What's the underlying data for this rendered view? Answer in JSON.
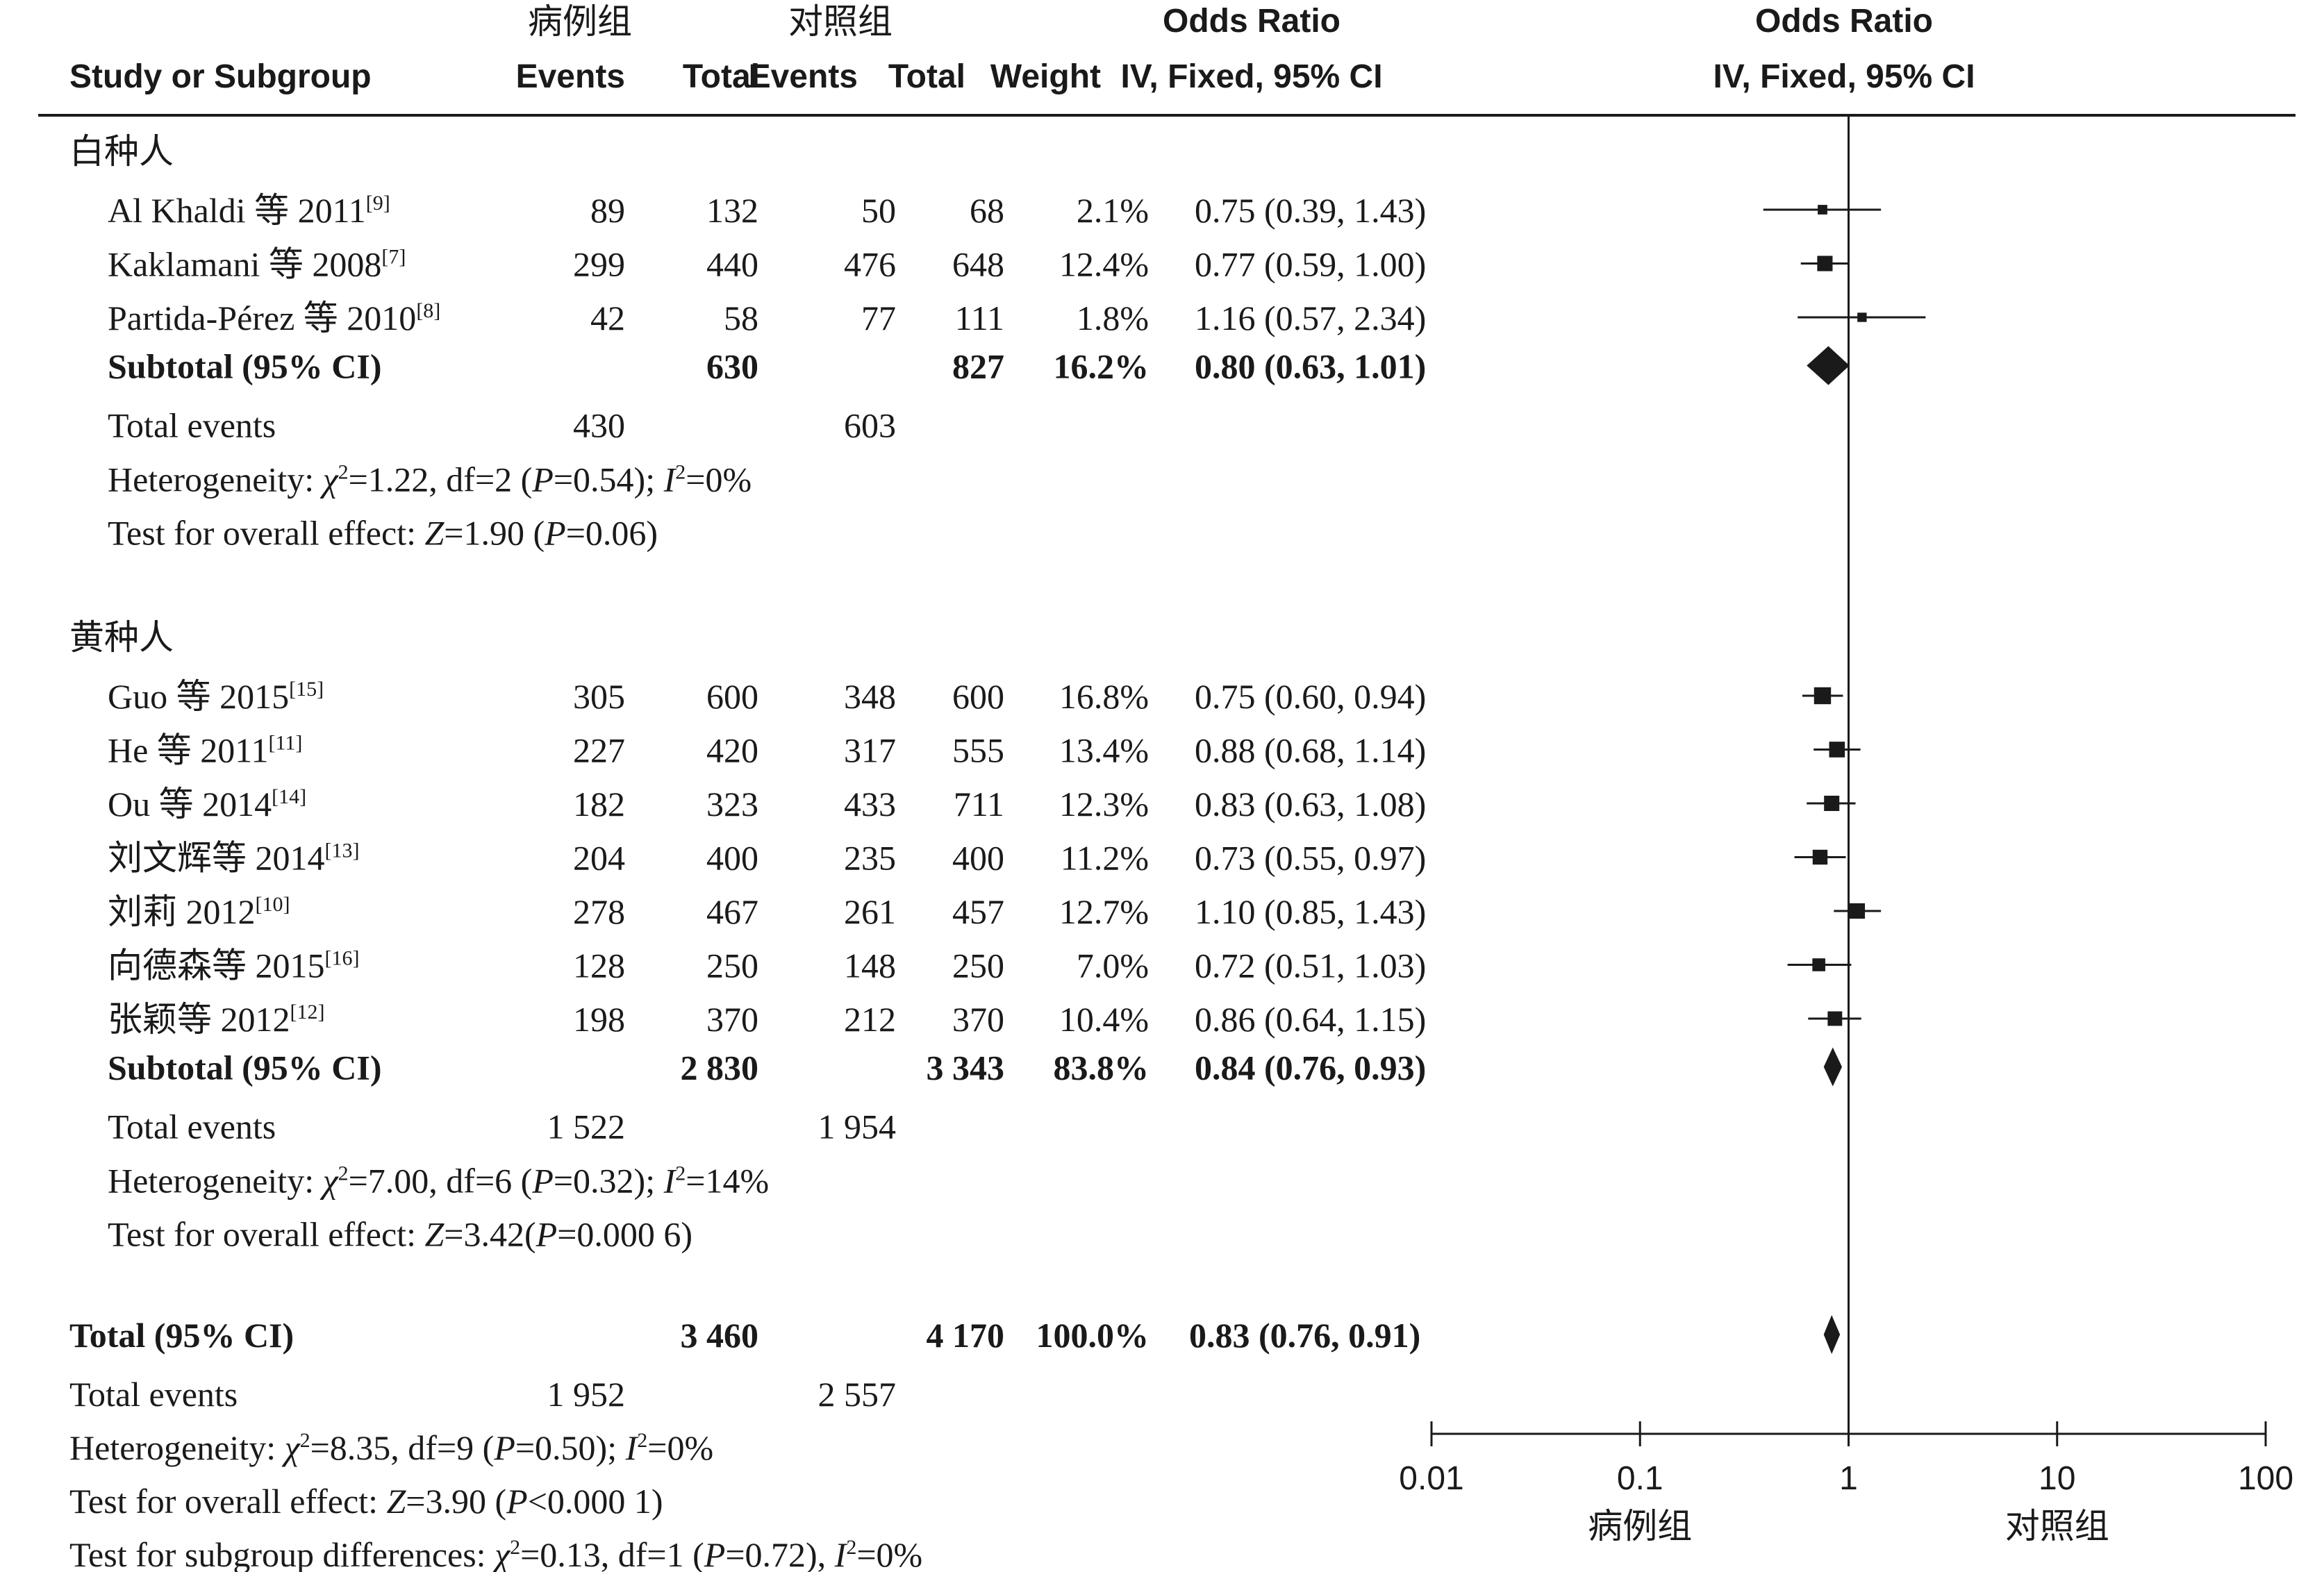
{
  "headers": {
    "case_group": "病例组",
    "control_group": "对照组",
    "or_top_1": "Odds Ratio",
    "or_top_2": "Odds Ratio",
    "study": "Study or Subgroup",
    "events_case": "Events",
    "total_case": "Total",
    "events_ctrl": "Events",
    "total_ctrl": "Total",
    "weight": "Weight",
    "or_method_1": "IV, Fixed, 95% CI",
    "or_method_2": "IV, Fixed, 95% CI"
  },
  "groups": [
    {
      "title": "白种人",
      "studies": [
        {
          "name": "Al Khaldi 等 2011",
          "ref": "[9]",
          "e1": "89",
          "t1": "132",
          "e2": "50",
          "t2": "68",
          "w": "2.1%",
          "ci": "0.75 (0.39, 1.43)",
          "or": 0.75,
          "lo": 0.39,
          "hi": 1.43,
          "wt": 2.1
        },
        {
          "name": "Kaklamani 等 2008",
          "ref": "[7]",
          "e1": "299",
          "t1": "440",
          "e2": "476",
          "t2": "648",
          "w": "12.4%",
          "ci": "0.77 (0.59, 1.00)",
          "or": 0.77,
          "lo": 0.59,
          "hi": 1.0,
          "wt": 12.4
        },
        {
          "name": "Partida-Pérez 等 2010",
          "ref": "[8]",
          "e1": "42",
          "t1": "58",
          "e2": "77",
          "t2": "111",
          "w": "1.8%",
          "ci": "1.16 (0.57, 2.34)",
          "or": 1.16,
          "lo": 0.57,
          "hi": 2.34,
          "wt": 1.8
        }
      ],
      "subtotal": {
        "label": "Subtotal (95% CI)",
        "t1": "630",
        "t2": "827",
        "w": "16.2%",
        "ci": "0.80 (0.63, 1.01)",
        "or": 0.8,
        "lo": 0.63,
        "hi": 1.01
      },
      "total_events": {
        "label": "Total events",
        "e1": "430",
        "e2": "603"
      },
      "heterogeneity": {
        "prefix": "Heterogeneity: ",
        "chi_sym": "χ",
        "chi_sup": "2",
        "chi_val": "=1.22, df=2 (",
        "p_sym": "P",
        "p_val": "=0.54); ",
        "i_sym": "I",
        "i_sup": "2",
        "i_val": "=0%"
      },
      "overall": {
        "prefix": "Test for overall effect: ",
        "z_sym": "Z",
        "z_val": "=1.90 (",
        "p_sym": "P",
        "p_val": "=0.06)"
      }
    },
    {
      "title": "黄种人",
      "studies": [
        {
          "name": "Guo 等 2015",
          "ref": "[15]",
          "e1": "305",
          "t1": "600",
          "e2": "348",
          "t2": "600",
          "w": "16.8%",
          "ci": "0.75 (0.60, 0.94)",
          "or": 0.75,
          "lo": 0.6,
          "hi": 0.94,
          "wt": 16.8
        },
        {
          "name": "He 等 2011",
          "ref": "[11]",
          "e1": "227",
          "t1": "420",
          "e2": "317",
          "t2": "555",
          "w": "13.4%",
          "ci": "0.88 (0.68, 1.14)",
          "or": 0.88,
          "lo": 0.68,
          "hi": 1.14,
          "wt": 13.4
        },
        {
          "name": "Ou 等 2014",
          "ref": "[14]",
          "e1": "182",
          "t1": "323",
          "e2": "433",
          "t2": "711",
          "w": "12.3%",
          "ci": "0.83 (0.63, 1.08)",
          "or": 0.83,
          "lo": 0.63,
          "hi": 1.08,
          "wt": 12.3
        },
        {
          "name": "刘文辉等 2014",
          "ref": "[13]",
          "e1": "204",
          "t1": "400",
          "e2": "235",
          "t2": "400",
          "w": "11.2%",
          "ci": "0.73 (0.55, 0.97)",
          "or": 0.73,
          "lo": 0.55,
          "hi": 0.97,
          "wt": 11.2
        },
        {
          "name": "刘莉 2012",
          "ref": "[10]",
          "e1": "278",
          "t1": "467",
          "e2": "261",
          "t2": "457",
          "w": "12.7%",
          "ci": "1.10 (0.85, 1.43)",
          "or": 1.1,
          "lo": 0.85,
          "hi": 1.43,
          "wt": 12.7
        },
        {
          "name": "向德森等 2015",
          "ref": "[16]",
          "e1": "128",
          "t1": "250",
          "e2": "148",
          "t2": "250",
          "w": "7.0%",
          "ci": "0.72 (0.51, 1.03)",
          "or": 0.72,
          "lo": 0.51,
          "hi": 1.03,
          "wt": 7.0
        },
        {
          "name": "张颖等 2012",
          "ref": "[12]",
          "e1": "198",
          "t1": "370",
          "e2": "212",
          "t2": "370",
          "w": "10.4%",
          "ci": "0.86 (0.64, 1.15)",
          "or": 0.86,
          "lo": 0.64,
          "hi": 1.15,
          "wt": 10.4
        }
      ],
      "subtotal": {
        "label": "Subtotal (95% CI)",
        "t1": "2 830",
        "t2": "3 343",
        "w": "83.8%",
        "ci": "0.84 (0.76, 0.93)",
        "or": 0.84,
        "lo": 0.76,
        "hi": 0.93
      },
      "total_events": {
        "label": "Total events",
        "e1": "1 522",
        "e2": "1 954"
      },
      "heterogeneity": {
        "prefix": "Heterogeneity: ",
        "chi_sym": "χ",
        "chi_sup": "2",
        "chi_val": "=7.00, df=6 (",
        "p_sym": "P",
        "p_val": "=0.32); ",
        "i_sym": "I",
        "i_sup": "2",
        "i_val": "=14%"
      },
      "overall": {
        "prefix": "Test for overall effect: ",
        "z_sym": "Z",
        "z_val": "=3.42(",
        "p_sym": "P",
        "p_val": "=0.000 6)"
      }
    }
  ],
  "total": {
    "label": "Total (95% CI)",
    "t1": "3 460",
    "t2": "4 170",
    "w": "100.0%",
    "ci": "0.83 (0.76, 0.91)",
    "or": 0.83,
    "lo": 0.76,
    "hi": 0.91,
    "total_events": {
      "label": "Total events",
      "e1": "1 952",
      "e2": "2 557"
    },
    "heterogeneity": {
      "prefix": "Heterogeneity: ",
      "chi_sym": "χ",
      "chi_sup": "2",
      "chi_val": "=8.35, df=9 (",
      "p_sym": "P",
      "p_val": "=0.50); ",
      "i_sym": "I",
      "i_sup": "2",
      "i_val": "=0%"
    },
    "overall": {
      "prefix": "Test for overall effect: ",
      "z_sym": "Z",
      "z_val": "=3.90 (",
      "p_sym": "P",
      "p_val": "<0.000 1)"
    },
    "subgroup": {
      "prefix": "Test for subgroup differences: ",
      "chi_sym": "χ",
      "chi_sup": "2",
      "chi_val": "=0.13, df=1 (",
      "p_sym": "P",
      "p_val": "=0.72), ",
      "i_sym": "I",
      "i_sup": "2",
      "i_val": "=0%"
    }
  },
  "chart_data": {
    "type": "scatter",
    "x_scale": "log",
    "xlim": [
      0.01,
      100
    ],
    "x_ticks": [
      0.01,
      0.1,
      1,
      10,
      100
    ],
    "x_tick_labels": [
      "0.01",
      "0.1",
      "1",
      "10",
      "100"
    ],
    "favours_left": "病例组",
    "favours_right": "对照组",
    "null_line": 1,
    "colors": {
      "ink": "#1a1a1a"
    }
  }
}
